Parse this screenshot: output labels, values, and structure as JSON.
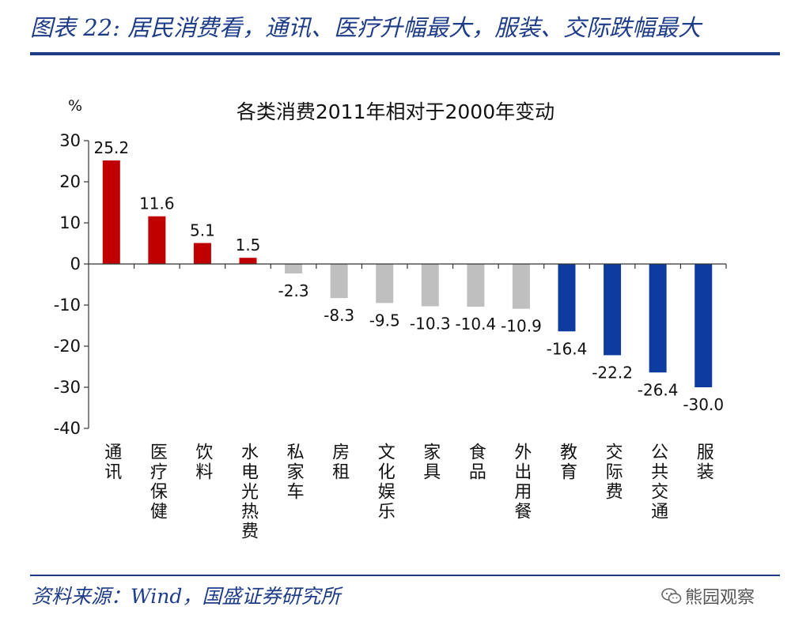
{
  "figure_title": "图表 22: 居民消费看，通讯、医疗升幅最大，服装、交际跌幅最大",
  "source": "资料来源：Wind，国盛证券研究所",
  "watermark": "熊园观察",
  "colors": {
    "brand_blue": "#1f3c88",
    "bar_red": "#c00000",
    "bar_gray": "#bfbfbf",
    "bar_blue": "#0e3b9e"
  },
  "chart_data": {
    "type": "bar",
    "title": "各类消费2011年相对于2000年变动",
    "ylabel": "%",
    "ylim": [
      -40,
      30
    ],
    "yticks": [
      30,
      20,
      10,
      0,
      -10,
      -20,
      -30,
      -40
    ],
    "categories": [
      "通讯",
      "医疗保健",
      "饮料",
      "水电光热费",
      "私家车",
      "房租",
      "文化娱乐",
      "家具",
      "食品",
      "外出用餐",
      "教育",
      "交际费",
      "公共交通",
      "服装"
    ],
    "values": [
      25.2,
      11.6,
      5.1,
      1.5,
      -2.3,
      -8.3,
      -9.5,
      -10.3,
      -10.4,
      -10.9,
      -16.4,
      -22.2,
      -26.4,
      -30.0
    ],
    "value_labels": [
      "25.2",
      "11.6",
      "5.1",
      "1.5",
      "-2.3",
      "-8.3",
      "-9.5",
      "-10.3",
      "-10.4",
      "-10.9",
      "-16.4",
      "-22.2",
      "-26.4",
      "-30.0"
    ],
    "bar_colors": [
      "red",
      "red",
      "red",
      "red",
      "gray",
      "gray",
      "gray",
      "gray",
      "gray",
      "gray",
      "blue",
      "blue",
      "blue",
      "blue"
    ],
    "grid": false,
    "legend": "none"
  }
}
